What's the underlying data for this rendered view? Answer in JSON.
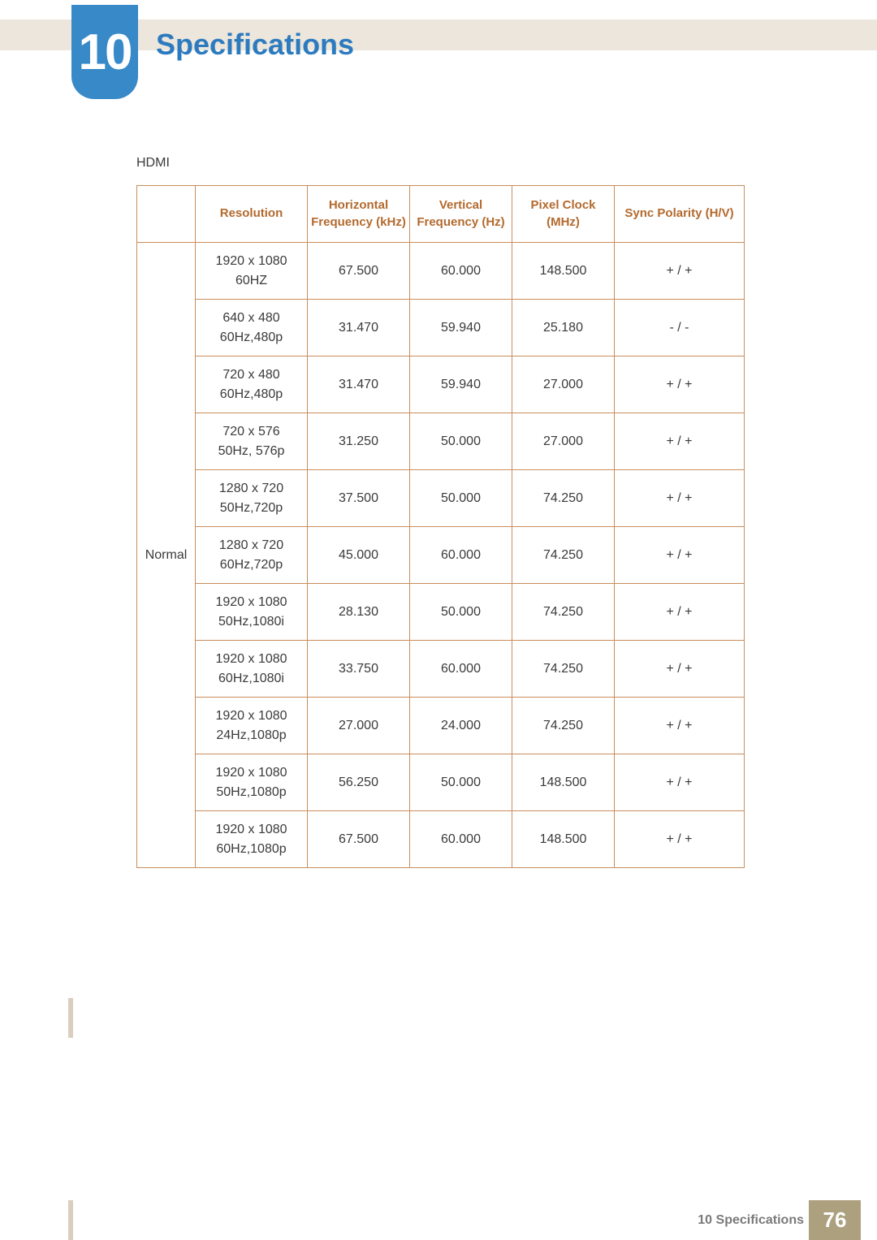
{
  "header": {
    "chapter_number": "10",
    "title": "Specifications"
  },
  "section": {
    "label": "HDMI"
  },
  "table": {
    "columns": [
      {
        "label": "",
        "class": "col-cat"
      },
      {
        "label": "Resolution",
        "class": "col-res"
      },
      {
        "label": "Horizontal Frequency (kHz)",
        "class": "col-hf"
      },
      {
        "label": "Vertical Frequency (Hz)",
        "class": "col-vf"
      },
      {
        "label": "Pixel Clock (MHz)",
        "class": "col-pc"
      },
      {
        "label": "Sync Polarity (H/V)",
        "class": "col-sp"
      }
    ],
    "category": "Normal",
    "rows": [
      {
        "resolution_line1": "1920 x 1080",
        "resolution_line2": "60HZ",
        "hfreq": "67.500",
        "vfreq": "60.000",
        "pclock": "148.500",
        "sync": "+ / +"
      },
      {
        "resolution_line1": "640 x 480",
        "resolution_line2": "60Hz,480p",
        "hfreq": "31.470",
        "vfreq": "59.940",
        "pclock": "25.180",
        "sync": "- / -"
      },
      {
        "resolution_line1": "720 x 480",
        "resolution_line2": "60Hz,480p",
        "hfreq": "31.470",
        "vfreq": "59.940",
        "pclock": "27.000",
        "sync": "+ / +"
      },
      {
        "resolution_line1": "720 x 576",
        "resolution_line2": "50Hz, 576p",
        "hfreq": "31.250",
        "vfreq": "50.000",
        "pclock": "27.000",
        "sync": "+ / +"
      },
      {
        "resolution_line1": "1280 x 720",
        "resolution_line2": "50Hz,720p",
        "hfreq": "37.500",
        "vfreq": "50.000",
        "pclock": "74.250",
        "sync": "+ / +"
      },
      {
        "resolution_line1": "1280 x 720",
        "resolution_line2": "60Hz,720p",
        "hfreq": "45.000",
        "vfreq": "60.000",
        "pclock": "74.250",
        "sync": "+ / +"
      },
      {
        "resolution_line1": "1920 x 1080",
        "resolution_line2": "50Hz,1080i",
        "hfreq": "28.130",
        "vfreq": "50.000",
        "pclock": "74.250",
        "sync": "+ / +"
      },
      {
        "resolution_line1": "1920 x 1080",
        "resolution_line2": "60Hz,1080i",
        "hfreq": "33.750",
        "vfreq": "60.000",
        "pclock": "74.250",
        "sync": "+ / +"
      },
      {
        "resolution_line1": "1920 x 1080",
        "resolution_line2": "24Hz,1080p",
        "hfreq": "27.000",
        "vfreq": "24.000",
        "pclock": "74.250",
        "sync": "+ / +"
      },
      {
        "resolution_line1": "1920 x 1080",
        "resolution_line2": "50Hz,1080p",
        "hfreq": "56.250",
        "vfreq": "50.000",
        "pclock": "148.500",
        "sync": "+ / +"
      },
      {
        "resolution_line1": "1920 x 1080",
        "resolution_line2": "60Hz,1080p",
        "hfreq": "67.500",
        "vfreq": "60.000",
        "pclock": "148.500",
        "sync": "+ / +"
      }
    ]
  },
  "footer": {
    "label": "10 Specifications",
    "page_number": "76"
  },
  "colors": {
    "accent_blue": "#2d7bbf",
    "badge_blue": "#3789c8",
    "header_text": "#b36a2e",
    "table_border": "#c98d5c",
    "footer_box": "#aca07f",
    "top_bar": "#ece6dc"
  }
}
